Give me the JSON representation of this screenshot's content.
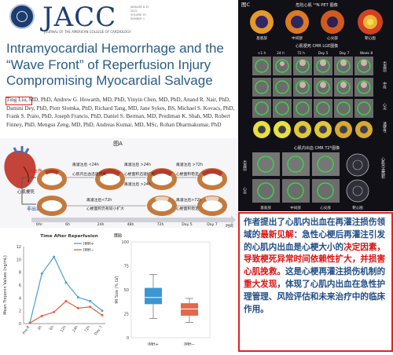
{
  "journal": {
    "name": "JACC",
    "subtitle": "JOURNAL OF THE AMERICAN COLLEGE OF CARDIOLOGY",
    "meta": [
      "JANUARY 8-15 2022",
      "VOLUME 79",
      "NUMBER 1"
    ]
  },
  "article": {
    "title": "Intramyocardial Hemorrhage and the “Wave Front” of Reperfusion Injury Compromising Myocardial Salvage",
    "first_author": "Ting Liu",
    "authors_rest": ", MD, PhD, Andrew G. Howarth, MD, PhD, Yinyin Chen, MD, PhD, Anand R. Nair, PhD, Damini Dey, PhD, Piotr Slomka, PhD, Richard Tang, MD, Jane Sykes, BS, Michael S. Kovacs, PhD, Frank S. Prato, PhD, Joseph Francis, PhD, Daniel S. Berman, MD, Prediman K. Shah, MD, Robert Finney, PhD, Mengsu Zeng, MD, PhD, Andreas Kumar, MD, MSc, Rohan Dharmakumar, PhD"
  },
  "figA": {
    "label": "图A",
    "heart_label": "心肌梗死",
    "row1": {
      "title": "出血性",
      "s1": "再灌注后 <24h",
      "s1b": "心肌内出血迅速扩大",
      "s2": "再灌注后 >24h",
      "s2b": "心梗面积迅速扩大",
      "s3": "再灌注后 >24h",
      "s3b": "心梗面积仍有较小扩大",
      "s4": "再灌注后 >72h",
      "s4b": "心梗面积稳定"
    },
    "row2": {
      "title": "非出血性",
      "s1": "再灌注后<72h",
      "s1b": "心梗面积仍有较小扩大",
      "s2": "再灌注后>72h",
      "s2b": "心梗面积稳定"
    },
    "timeline": [
      "Ohr",
      "6h",
      "24h",
      "48h",
      "72h",
      "Day 5",
      "Day 7"
    ],
    "time_label": "时间"
  },
  "figC": {
    "label": "图C",
    "pet_title": "危险心肌 ¹³N PET 图像",
    "pet_labels": [
      "基底部",
      "中间部",
      "心尖部",
      "靶心图"
    ],
    "lge_title": "心肌梗死 CMR LGE图像",
    "lge_times": [
      "<1 h",
      "24 h",
      "72 h",
      "Day 5",
      "Day 7",
      "Week 8"
    ],
    "lge_rows": [
      "出血前",
      "中段",
      "心尖",
      "透壁性"
    ],
    "t2_title": "心肌内出血 CMR T2*图像",
    "t2_rows": [
      "出血前",
      "心尖"
    ],
    "t2_side": "心肌出血面积",
    "t2_times": [
      "基底部",
      "中间部",
      "心尖部",
      "靶心图"
    ]
  },
  "chart_data": [
    {
      "type": "line",
      "title": "Time After Reperfusion",
      "ylabel": "Mean Troponin Values (ng/mL)",
      "x": [
        "Pre-R",
        "3h",
        "6h",
        "12h",
        "24h",
        "72h",
        "Day 7"
      ],
      "ylim": [
        0,
        12
      ],
      "yticks": [
        0,
        2,
        4,
        6,
        8,
        10,
        12
      ],
      "series": [
        {
          "name": "IMH+",
          "color": "#4a9ed8",
          "values": [
            0.1,
            7.8,
            10.4,
            6.4,
            4.1,
            3.5,
            2.0
          ]
        },
        {
          "name": "IMH−",
          "color": "#e0603e",
          "values": [
            0.1,
            1.2,
            1.8,
            3.5,
            2.4,
            2.6,
            1.3
          ]
        }
      ]
    },
    {
      "type": "box",
      "label": "图B",
      "ylabel": "MI Size (% LV)",
      "categories": [
        "IMH+",
        "IMH−"
      ],
      "ylim": [
        0,
        100
      ],
      "yticks": [
        0,
        25,
        50,
        75,
        100
      ],
      "boxes": [
        {
          "name": "IMH+",
          "color": "#3a97d4",
          "min": 20,
          "q1": 35,
          "median": 42,
          "q3": 52,
          "max": 66
        },
        {
          "name": "IMH−",
          "color": "#e06a4a",
          "min": 16,
          "q1": 23,
          "median": 30,
          "q3": 36,
          "max": 41
        }
      ]
    }
  ],
  "conclusion": {
    "p1": "作者提出了心肌内出血在再灌注损伤领域的",
    "h1": "最新见解",
    "p2": "：急性心梗后再灌注引发的心肌内出血是心梗大小的",
    "h2": "决定因素，导致梗死异常时间依赖性扩大，并损害心肌挽救。",
    "p3": "这是心梗再灌注损伤机制的",
    "h3": "重大发现",
    "p4": "，体现了心肌内出血在急性护理管理、风险评估和未来治疗中的临床作用。"
  },
  "colors": {
    "journal_blue": "#1f3f73",
    "title_blue": "#2a5c86",
    "accent_red": "#dd1111",
    "box_text": "#1f4c86"
  }
}
